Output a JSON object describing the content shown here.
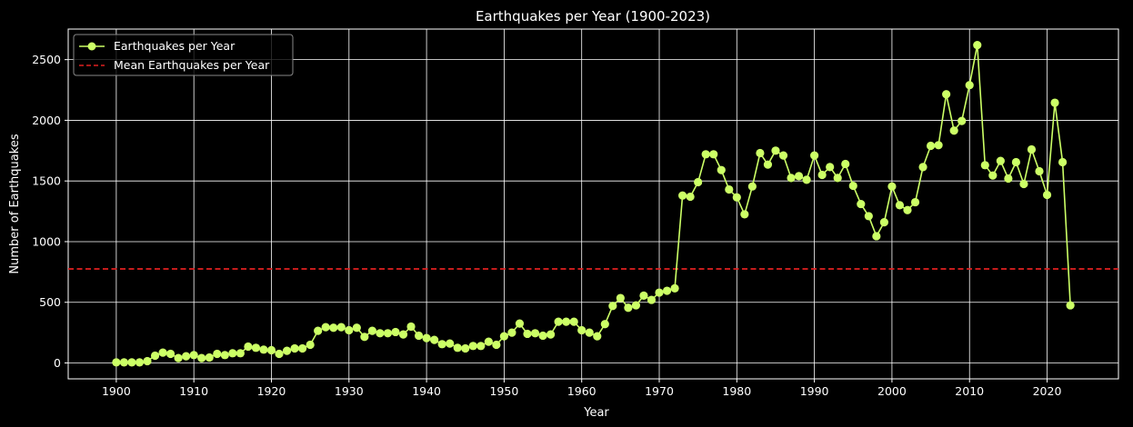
{
  "chart_data": {
    "type": "line",
    "title": "Earthquakes per Year (1900-2023)",
    "xlabel": "Year",
    "ylabel": "Number of Earthquakes",
    "xlim": [
      1893.8,
      2029.2
    ],
    "ylim": [
      -131,
      2752
    ],
    "x_ticks": [
      "1900",
      "1910",
      "1920",
      "1930",
      "1940",
      "1950",
      "1960",
      "1970",
      "1980",
      "1990",
      "2000",
      "2010",
      "2020"
    ],
    "y_ticks": [
      "0",
      "500",
      "1000",
      "1500",
      "2000",
      "2500"
    ],
    "grid": true,
    "legend_position": "top-left",
    "background": "#000000",
    "series": [
      {
        "name": "Earthquakes per Year",
        "color": "#ccff66",
        "style": "line-with-markers",
        "x": [
          1900,
          1901,
          1902,
          1903,
          1904,
          1905,
          1906,
          1907,
          1908,
          1909,
          1910,
          1911,
          1912,
          1913,
          1914,
          1915,
          1916,
          1917,
          1918,
          1919,
          1920,
          1921,
          1922,
          1923,
          1924,
          1925,
          1926,
          1927,
          1928,
          1929,
          1930,
          1931,
          1932,
          1933,
          1934,
          1935,
          1936,
          1937,
          1938,
          1939,
          1940,
          1941,
          1942,
          1943,
          1944,
          1945,
          1946,
          1947,
          1948,
          1949,
          1950,
          1951,
          1952,
          1953,
          1954,
          1955,
          1956,
          1957,
          1958,
          1959,
          1960,
          1961,
          1962,
          1963,
          1964,
          1965,
          1966,
          1967,
          1968,
          1969,
          1970,
          1971,
          1972,
          1973,
          1974,
          1975,
          1976,
          1977,
          1978,
          1979,
          1980,
          1981,
          1982,
          1983,
          1984,
          1985,
          1986,
          1987,
          1988,
          1989,
          1990,
          1991,
          1992,
          1993,
          1994,
          1995,
          1996,
          1997,
          1998,
          1999,
          2000,
          2001,
          2002,
          2003,
          2004,
          2005,
          2006,
          2007,
          2008,
          2009,
          2010,
          2011,
          2012,
          2013,
          2014,
          2015,
          2016,
          2017,
          2018,
          2019,
          2020,
          2021,
          2022,
          2023
        ],
        "y": [
          5,
          5,
          5,
          5,
          15,
          60,
          85,
          75,
          40,
          55,
          65,
          40,
          45,
          75,
          65,
          80,
          80,
          135,
          125,
          110,
          105,
          75,
          100,
          120,
          120,
          150,
          265,
          295,
          290,
          295,
          270,
          290,
          215,
          265,
          245,
          245,
          255,
          235,
          300,
          225,
          205,
          190,
          155,
          160,
          125,
          120,
          140,
          140,
          175,
          150,
          220,
          250,
          325,
          240,
          245,
          225,
          235,
          340,
          340,
          340,
          270,
          250,
          220,
          320,
          470,
          535,
          455,
          475,
          555,
          520,
          580,
          595,
          615,
          1380,
          1370,
          1490,
          1720,
          1720,
          1590,
          1430,
          1365,
          1225,
          1455,
          1730,
          1635,
          1750,
          1710,
          1525,
          1540,
          1510,
          1710,
          1550,
          1615,
          1525,
          1640,
          1460,
          1310,
          1210,
          1045,
          1160,
          1455,
          1300,
          1260,
          1325,
          1615,
          1790,
          1795,
          2215,
          1915,
          1995,
          2290,
          2620,
          1630,
          1545,
          1665,
          1520,
          1655,
          1475,
          1760,
          1580,
          1385,
          2145,
          1655,
          475
        ]
      },
      {
        "name": "Mean Earthquakes per Year",
        "color": "#e02020",
        "style": "dashed",
        "value": 775
      }
    ]
  }
}
